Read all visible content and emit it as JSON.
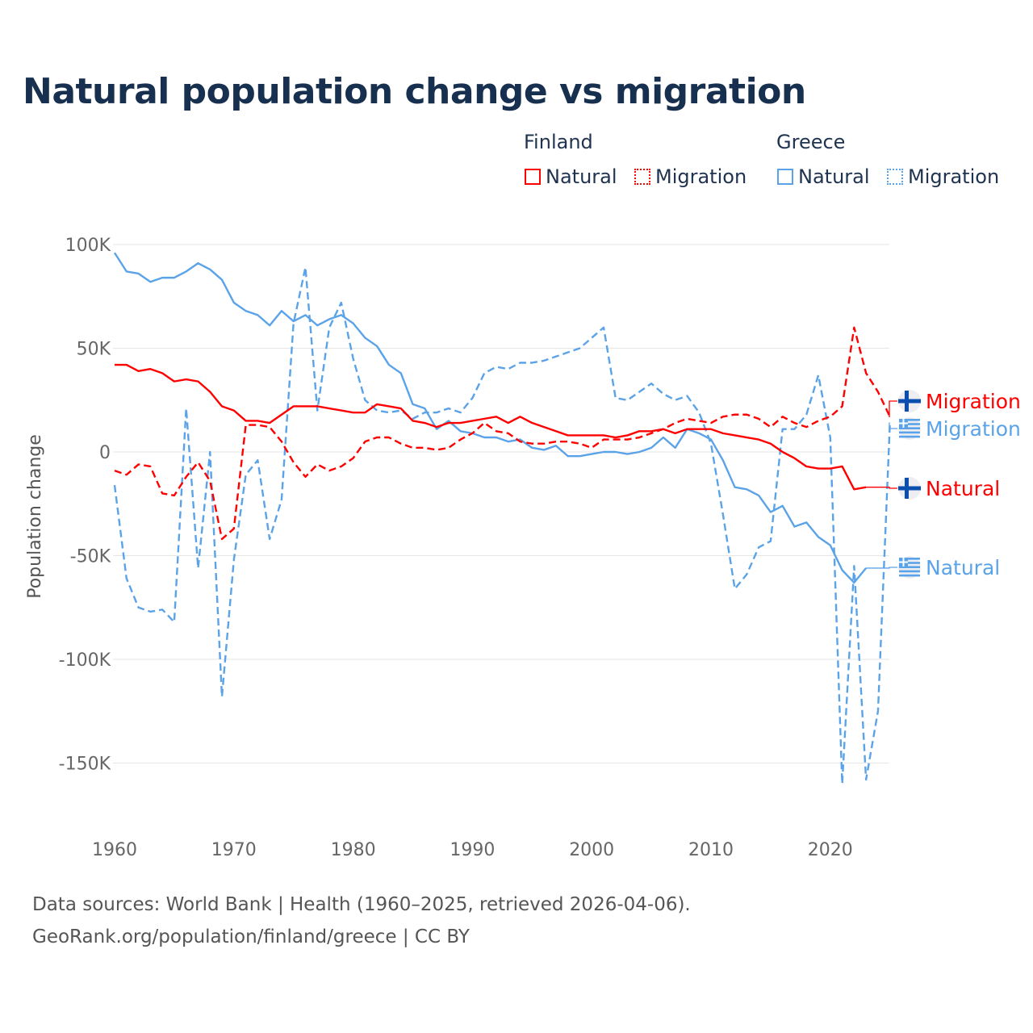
{
  "title": "Natural population change vs migration",
  "legend": {
    "groups": [
      {
        "name": "Finland",
        "items": [
          {
            "label": "Natural",
            "style": "solid"
          },
          {
            "label": "Migration",
            "style": "dotted"
          }
        ],
        "color": "#ff0000"
      },
      {
        "name": "Greece",
        "items": [
          {
            "label": "Natural",
            "style": "solid"
          },
          {
            "label": "Migration",
            "style": "dotted"
          }
        ],
        "color": "#5ba3e8"
      }
    ]
  },
  "footer": {
    "line1": "Data sources: World Bank | Health (1960–2025, retrieved 2026-04-06).",
    "line2": "GeoRank.org/population/finland/greece | CC BY"
  },
  "chart_data": {
    "type": "line",
    "title": "Natural population change vs migration",
    "xlabel": "",
    "ylabel": "Population change",
    "xlim": [
      1960,
      2025
    ],
    "ylim": [
      -160000,
      100000
    ],
    "x_ticks": [
      1960,
      1970,
      1980,
      1990,
      2000,
      2010,
      2020
    ],
    "x_tick_labels": [
      "1960",
      "1970",
      "1980",
      "1990",
      "2000",
      "2010",
      "2020"
    ],
    "y_ticks": [
      100000,
      50000,
      0,
      -50000,
      -100000,
      -150000
    ],
    "y_tick_labels": [
      "100K",
      "50K",
      "0",
      "-50K",
      "-100K",
      "-150K"
    ],
    "grid": true,
    "x_start": 1960,
    "unit": "thousands",
    "series": [
      {
        "name": "Finland Natural",
        "end_label": "Natural",
        "country": "Finland",
        "color": "#ff0000",
        "dash": "solid",
        "values": [
          42,
          42,
          39,
          40,
          38,
          34,
          35,
          34,
          29,
          22,
          20,
          15,
          15,
          14,
          18,
          22,
          22,
          22,
          21,
          20,
          19,
          19,
          23,
          22,
          21,
          15,
          14,
          12,
          14,
          14,
          15,
          16,
          17,
          14,
          17,
          14,
          12,
          10,
          8,
          8,
          8,
          8,
          7,
          8,
          10,
          10,
          11,
          9,
          11,
          11,
          11,
          9,
          8,
          7,
          6,
          4,
          0,
          -3,
          -7,
          -8,
          -8,
          -7,
          -18,
          -17
        ]
      },
      {
        "name": "Finland Migration",
        "end_label": "Migration",
        "country": "Finland",
        "color": "#ff0000",
        "dash": "dashed",
        "values": [
          -9,
          -11,
          -6,
          -7,
          -20,
          -21,
          -12,
          -5,
          -14,
          -42,
          -37,
          13,
          13,
          12,
          5,
          -5,
          -12,
          -6,
          -9,
          -7,
          -3,
          5,
          7,
          7,
          4,
          2,
          2,
          1,
          2,
          6,
          9,
          14,
          10,
          9,
          5,
          4,
          4,
          5,
          5,
          4,
          2,
          6,
          6,
          6,
          7,
          9,
          11,
          14,
          16,
          15,
          14,
          17,
          18,
          18,
          16,
          12,
          17,
          14,
          12,
          15,
          17,
          22,
          60,
          38,
          29,
          17
        ]
      },
      {
        "name": "Greece Natural",
        "end_label": "Natural",
        "country": "Greece",
        "color": "#5ba3e8",
        "dash": "solid",
        "values": [
          96,
          87,
          86,
          82,
          84,
          84,
          87,
          91,
          88,
          83,
          72,
          68,
          66,
          61,
          68,
          63,
          66,
          61,
          64,
          66,
          62,
          55,
          51,
          42,
          38,
          23,
          21,
          11,
          15,
          10,
          9,
          7,
          7,
          5,
          6,
          2,
          1,
          3,
          -2,
          -2,
          -1,
          0,
          0,
          -1,
          0,
          2,
          7,
          2,
          11,
          9,
          6,
          -4,
          -17,
          -18,
          -21,
          -29,
          -26,
          -36,
          -34,
          -41,
          -45,
          -57,
          -63,
          -56
        ]
      },
      {
        "name": "Greece Migration",
        "end_label": "Migration",
        "country": "Greece",
        "color": "#5ba3e8",
        "dash": "dashed",
        "values": [
          -16,
          -61,
          -75,
          -77,
          -76,
          -82,
          21,
          -56,
          0,
          -118,
          -52,
          -11,
          -4,
          -42,
          -23,
          62,
          89,
          20,
          60,
          72,
          45,
          25,
          20,
          19,
          20,
          16,
          19,
          19,
          21,
          19,
          26,
          38,
          41,
          40,
          43,
          43,
          44,
          46,
          48,
          50,
          55,
          60,
          26,
          25,
          29,
          33,
          28,
          25,
          27,
          19,
          4,
          -30,
          -66,
          -59,
          -46,
          -43,
          11,
          11,
          18,
          37,
          7,
          -160,
          -55,
          -158,
          -125,
          14
        ]
      }
    ]
  }
}
